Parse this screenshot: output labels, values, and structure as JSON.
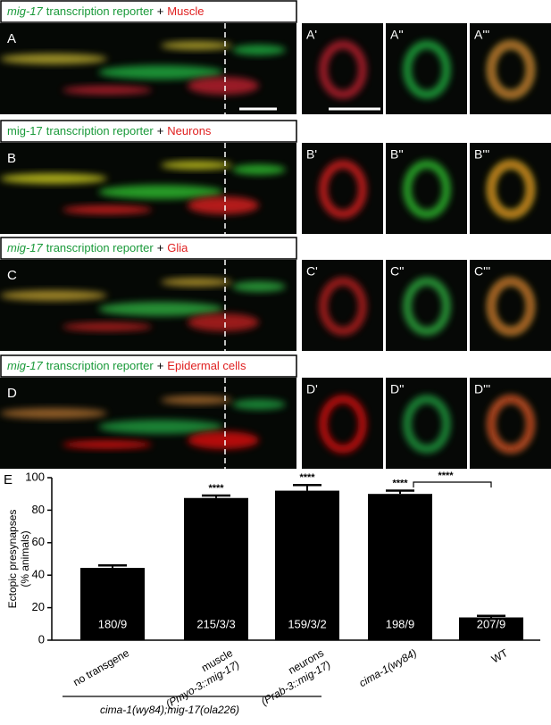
{
  "rows": [
    {
      "gene": "mig-17",
      "gene_italic": true,
      "reporter": "transcription reporter",
      "plus": "+",
      "marker": "Muscle",
      "labels": [
        "A",
        "A'",
        "A''",
        "A'''"
      ]
    },
    {
      "gene": "mig-17",
      "gene_italic": false,
      "reporter": "transcription reporter",
      "plus": "+",
      "marker": "Neurons",
      "labels": [
        "B",
        "B'",
        "B''",
        "B'''"
      ]
    },
    {
      "gene": "mig-17",
      "gene_italic": true,
      "reporter": "transcription reporter",
      "plus": "+",
      "marker": "Glia",
      "labels": [
        "C",
        "C'",
        "C''",
        "C'''"
      ]
    },
    {
      "gene": "mig-17",
      "gene_italic": true,
      "reporter": "transcription reporter",
      "plus": "+",
      "marker": "Epidermal cells",
      "labels": [
        "D",
        "D'",
        "D''",
        "D'''"
      ]
    }
  ],
  "chart_data": {
    "type": "bar",
    "panel_label": "E",
    "y_label": [
      "Ectopic presynapses",
      "(% animals)"
    ],
    "categories": [
      "no transgene",
      "muscle",
      "neurons",
      "cima-1(wy84)",
      "WT"
    ],
    "category_genotypes": [
      null,
      "(Pmyo-3::mig-17)",
      "(Prab-3::mig-17)",
      null,
      null
    ],
    "values": [
      44.5,
      87.5,
      92,
      90,
      14
    ],
    "errors": [
      1.5,
      1.5,
      3.5,
      2,
      1
    ],
    "n_labels": [
      "180/9",
      "215/3/3",
      "159/3/2",
      "198/9",
      "207/9"
    ],
    "significance": [
      null,
      "****",
      "****",
      "****",
      null
    ],
    "bracket_label": "****",
    "group_label": "cima-1(wy84);mig-17(ola226)",
    "color": "#000000",
    "ylim": [
      0,
      100
    ],
    "yticks": [
      0,
      20,
      40,
      60,
      80,
      100
    ]
  }
}
